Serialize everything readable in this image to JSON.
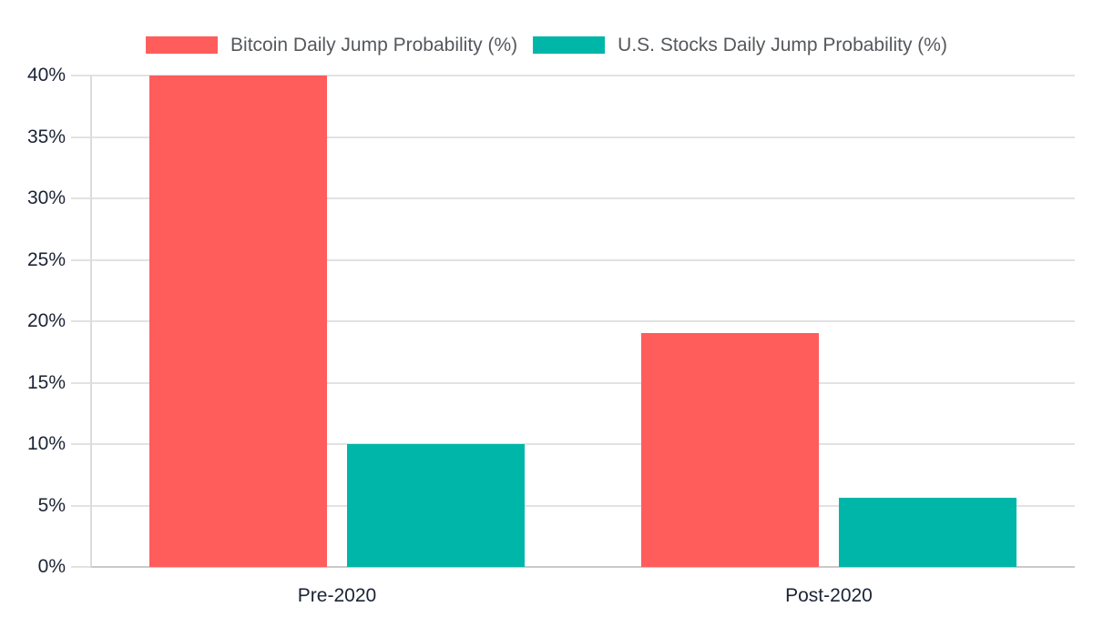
{
  "chart_data": {
    "type": "bar",
    "categories": [
      "Pre-2020",
      "Post-2020"
    ],
    "series": [
      {
        "name": "Bitcoin Daily Jump Probability (%)",
        "color": "#FF5C5C",
        "values": [
          40,
          19
        ]
      },
      {
        "name": "U.S. Stocks Daily Jump Probability (%)",
        "color": "#00B6A8",
        "values": [
          10,
          5.6
        ]
      }
    ],
    "title": "",
    "xlabel": "",
    "ylabel": "",
    "ylim": [
      0,
      40
    ],
    "ytick_values": [
      0,
      5,
      10,
      15,
      20,
      25,
      30,
      35,
      40
    ],
    "ytick_labels": [
      "0%",
      "5%",
      "10%",
      "15%",
      "20%",
      "25%",
      "30%",
      "35%",
      "40%"
    ],
    "grid": "horizontal",
    "legend_position": "top-center"
  },
  "colors": {
    "background": "#FFFFFF",
    "gridline": "#E2E2E2",
    "baseline": "#C9C9C9",
    "axis_line": "#DCDCDC",
    "axis_text": "#1B2335",
    "legend_text": "#55585C"
  }
}
